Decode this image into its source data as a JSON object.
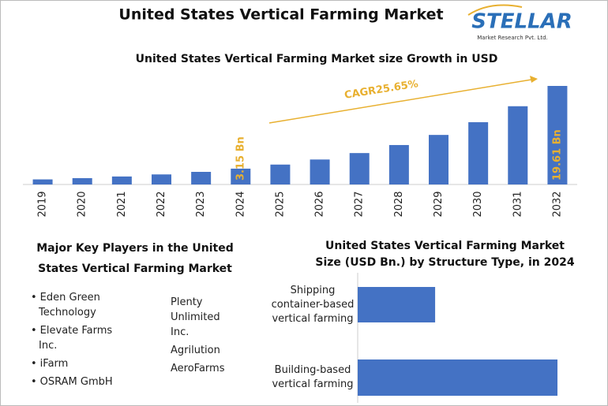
{
  "header": {
    "title": "United States Vertical Farming Market"
  },
  "logo": {
    "name": "STELLAR",
    "tagline": "Market Research Pvt. Ltd."
  },
  "chart_data": [
    {
      "type": "bar",
      "title": "United States Vertical Farming Market size Growth in USD",
      "categories": [
        "2019",
        "2020",
        "2021",
        "2022",
        "2023",
        "2024",
        "2025",
        "2026",
        "2027",
        "2028",
        "2029",
        "2030",
        "2031",
        "2032"
      ],
      "values": [
        1.01,
        1.26,
        1.59,
        2.0,
        2.51,
        3.15,
        3.96,
        4.97,
        6.25,
        7.85,
        9.86,
        12.39,
        15.57,
        19.61
      ],
      "value_labels": [
        null,
        null,
        null,
        null,
        null,
        "3.15 Bn",
        null,
        null,
        null,
        null,
        null,
        null,
        null,
        "19.61 Bn"
      ],
      "color": "#4472c4",
      "label_color": "#e8b030",
      "annotation": "CAGR25.65%"
    },
    {
      "type": "hbar",
      "title": "United States Vertical Farming Market Size (USD Bn.) by Structure Type, in 2024",
      "categories": [
        "Shipping container-based vertical farming",
        "Building-based vertical farming"
      ],
      "values": [
        0.88,
        2.27
      ],
      "color": "#4472c4"
    }
  ],
  "key_players": {
    "title": "Major Key Players in the United States Vertical Farming Market",
    "columns": [
      [
        "Eden Green Technology",
        "Elevate Farms Inc.",
        "iFarm",
        "OSRAM GmbH"
      ],
      [
        "Plenty Unlimited Inc.",
        "Agrilution",
        "AeroFarms"
      ]
    ]
  }
}
